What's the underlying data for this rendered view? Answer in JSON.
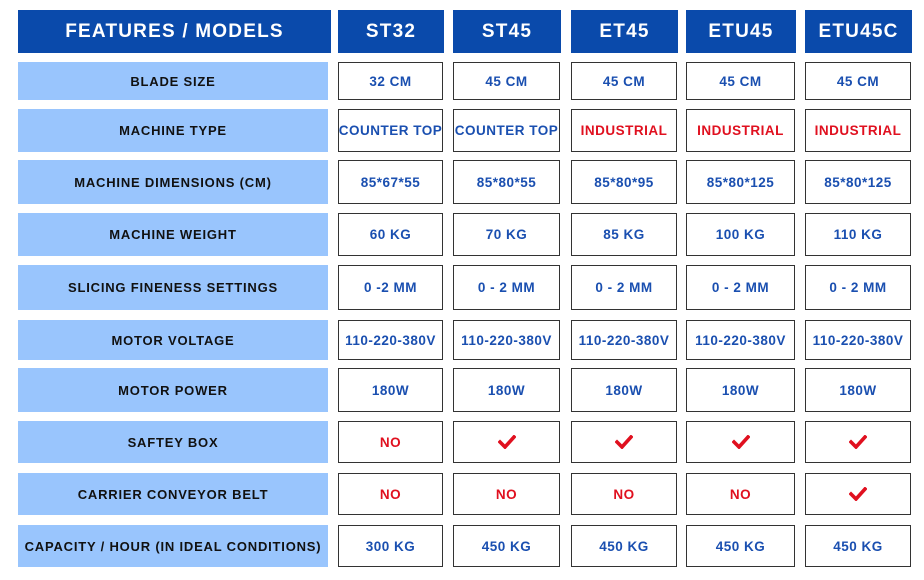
{
  "colors": {
    "header_bg": "#0a4aab",
    "label_bg": "#99c5fd",
    "value_text": "#1a4fb0",
    "negative_text": "#e0101f",
    "check": "#e0101f"
  },
  "header": {
    "features_label": "FEATURES / MODELS",
    "models": [
      "ST32",
      "ST45",
      "ET45",
      "ETU45",
      "ETU45C"
    ]
  },
  "rows": [
    {
      "label": "BLADE SIZE",
      "values": [
        "32 CM",
        "45 CM",
        "45 CM",
        "45 CM",
        "45 CM"
      ]
    },
    {
      "label": "MACHINE TYPE",
      "values": [
        "COUNTER TOP",
        "COUNTER TOP",
        "INDUSTRIAL",
        "INDUSTRIAL",
        "INDUSTRIAL"
      ]
    },
    {
      "label": "MACHINE DIMENSIONS (CM)",
      "values": [
        "85*67*55",
        "85*80*55",
        "85*80*95",
        "85*80*125",
        "85*80*125"
      ]
    },
    {
      "label": "MACHINE WEIGHT",
      "values": [
        "60 KG",
        "70 KG",
        "85 KG",
        "100 KG",
        "110 KG"
      ]
    },
    {
      "label": "SLICING FINENESS SETTINGS",
      "values": [
        "0 -2 MM",
        "0 - 2 MM",
        "0 - 2 MM",
        "0 - 2 MM",
        "0 - 2 MM"
      ]
    },
    {
      "label": "MOTOR VOLTAGE",
      "values": [
        "110-220-380V",
        "110-220-380V",
        "110-220-380V",
        "110-220-380V",
        "110-220-380V"
      ]
    },
    {
      "label": "MOTOR POWER",
      "values": [
        "180W",
        "180W",
        "180W",
        "180W",
        "180W"
      ]
    },
    {
      "label": "SAFTEY BOX",
      "values": [
        "NO",
        "check-icon",
        "check-icon",
        "check-icon",
        "check-icon"
      ]
    },
    {
      "label": "CARRIER CONVEYOR BELT",
      "values": [
        "NO",
        "NO",
        "NO",
        "NO",
        "check-icon"
      ]
    },
    {
      "label": "CAPACITY / HOUR (IN IDEAL CONDITIONS)",
      "values": [
        "300 KG",
        "450 KG",
        "450 KG",
        "450 KG",
        "450 KG"
      ]
    }
  ]
}
